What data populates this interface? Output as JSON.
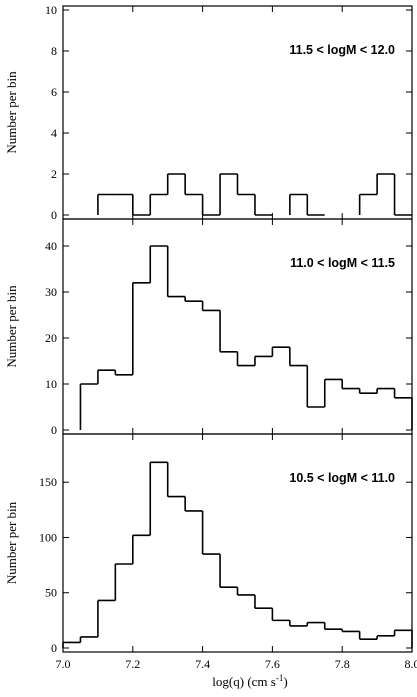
{
  "chart_data": {
    "type": "histogram",
    "xlabel": "log(q) (cm s",
    "xlabel_sup": "-1",
    "xlabel_close": ")",
    "xlim": [
      7.0,
      8.0
    ],
    "xticks": [
      "7.0",
      "7.2",
      "7.4",
      "7.6",
      "7.8",
      "8.0"
    ],
    "bin_edges": [
      7.0,
      7.05,
      7.1,
      7.15,
      7.2,
      7.25,
      7.3,
      7.35,
      7.4,
      7.45,
      7.5,
      7.55,
      7.6,
      7.65,
      7.7,
      7.75,
      7.8,
      7.85,
      7.9,
      7.95,
      8.0
    ],
    "panels": [
      {
        "label": "11.5 < logM  < 12.0",
        "ylabel": "Number per bin",
        "ylim": [
          0,
          10
        ],
        "yticks": [
          "0",
          "2",
          "4",
          "6",
          "8",
          "10"
        ],
        "counts": [
          0,
          0,
          1,
          1,
          0,
          1,
          2,
          1,
          0,
          2,
          1,
          0,
          0,
          1,
          0,
          0,
          0,
          1,
          2,
          0
        ]
      },
      {
        "label": "11.0 < logM  < 11.5",
        "ylabel": "Number per bin",
        "ylim": [
          0,
          45
        ],
        "yticks": [
          "0",
          "10",
          "20",
          "30",
          "40"
        ],
        "counts": [
          0,
          10,
          13,
          12,
          32,
          40,
          29,
          28,
          26,
          17,
          14,
          16,
          18,
          14,
          5,
          11,
          9,
          8,
          9,
          7
        ]
      },
      {
        "label": "10.5 < logM  < 11.0",
        "ylabel": "Number per bin",
        "ylim": [
          0,
          190
        ],
        "yticks": [
          "0",
          "50",
          "100",
          "150"
        ],
        "counts": [
          5,
          10,
          43,
          76,
          102,
          168,
          137,
          124,
          85,
          55,
          48,
          36,
          25,
          20,
          23,
          17,
          15,
          8,
          11,
          16
        ]
      }
    ]
  }
}
